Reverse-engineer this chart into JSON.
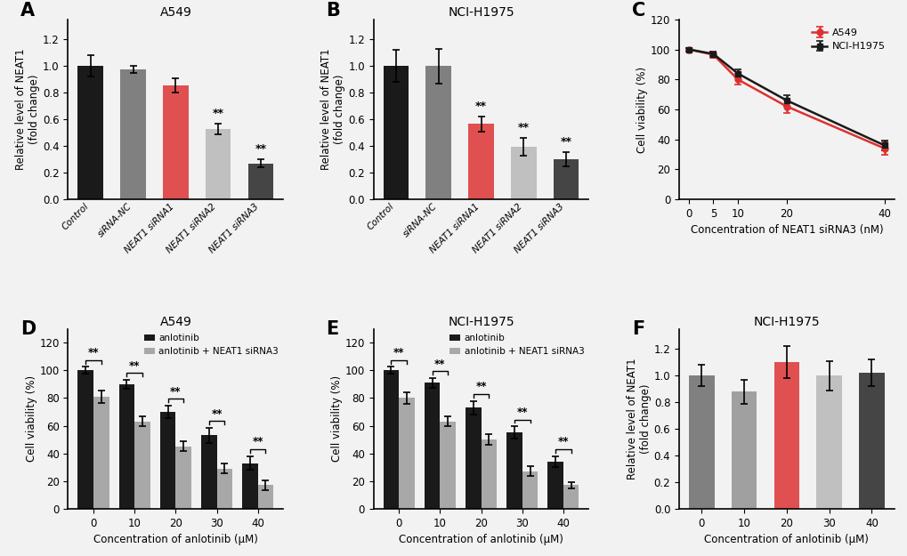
{
  "panel_A": {
    "title": "A549",
    "categories": [
      "Control",
      "siRNA-NC",
      "NEAT1 siRNA1",
      "NEAT1 siRNA2",
      "NEAT1 siRNA3"
    ],
    "values": [
      1.0,
      0.975,
      0.855,
      0.525,
      0.27
    ],
    "errors": [
      0.08,
      0.025,
      0.055,
      0.04,
      0.03
    ],
    "colors": [
      "#1a1a1a",
      "#808080",
      "#e05050",
      "#c0c0c0",
      "#454545"
    ],
    "sig": [
      false,
      false,
      false,
      true,
      true
    ],
    "ylabel": "Relative level of NEAT1\n(fold change)",
    "ylim": [
      0.0,
      1.35
    ],
    "yticks": [
      0.0,
      0.2,
      0.4,
      0.6,
      0.8,
      1.0,
      1.2
    ]
  },
  "panel_B": {
    "title": "NCI-H1975",
    "categories": [
      "Control",
      "siRNA-NC",
      "NEAT1 siRNA1",
      "NEAT1 siRNA2",
      "NEAT1 siRNA3"
    ],
    "values": [
      1.0,
      1.0,
      0.565,
      0.395,
      0.3
    ],
    "errors": [
      0.12,
      0.13,
      0.055,
      0.065,
      0.055
    ],
    "colors": [
      "#1a1a1a",
      "#808080",
      "#e05050",
      "#c0c0c0",
      "#454545"
    ],
    "sig": [
      false,
      false,
      true,
      true,
      true
    ],
    "ylabel": "Relative level of NEAT1\n(fold change)",
    "ylim": [
      0.0,
      1.35
    ],
    "yticks": [
      0.0,
      0.2,
      0.4,
      0.6,
      0.8,
      1.0,
      1.2
    ]
  },
  "panel_C": {
    "x": [
      0,
      5,
      10,
      20,
      40
    ],
    "A549_y": [
      100,
      96.5,
      80,
      62,
      34
    ],
    "A549_err": [
      1.2,
      1.8,
      3.5,
      4.5,
      4.5
    ],
    "NCI_y": [
      100,
      97,
      84,
      66,
      36
    ],
    "NCI_err": [
      1.0,
      1.5,
      2.5,
      3.5,
      3.5
    ],
    "xlabel": "Concentration of NEAT1 siRNA3 (nM)",
    "ylabel": "Cell viability (%)",
    "ylim": [
      0,
      120
    ],
    "yticks": [
      0,
      20,
      40,
      60,
      80,
      100,
      120
    ]
  },
  "panel_D": {
    "title": "A549",
    "x": [
      0,
      10,
      20,
      30,
      40
    ],
    "black_y": [
      100,
      90,
      70,
      53,
      33
    ],
    "black_err": [
      2.5,
      3.0,
      4.5,
      5.5,
      5.0
    ],
    "gray_y": [
      81,
      63,
      45,
      29,
      17
    ],
    "gray_err": [
      4.5,
      3.5,
      3.5,
      3.5,
      3.5
    ],
    "xlabel": "Concentration of anlotinib (μM)",
    "ylabel": "Cell viability (%)",
    "ylim": [
      0,
      130
    ],
    "yticks": [
      0,
      20,
      40,
      60,
      80,
      100,
      120
    ]
  },
  "panel_E": {
    "title": "NCI-H1975",
    "x": [
      0,
      10,
      20,
      30,
      40
    ],
    "black_y": [
      100,
      91,
      73,
      55,
      34
    ],
    "black_err": [
      2.5,
      3.5,
      5.0,
      4.5,
      4.0
    ],
    "gray_y": [
      80,
      63,
      50,
      27,
      17
    ],
    "gray_err": [
      4.0,
      3.5,
      4.0,
      3.5,
      2.5
    ],
    "xlabel": "Concentration of anlotinib (μM)",
    "ylabel": "Cell viability (%)",
    "ylim": [
      0,
      130
    ],
    "yticks": [
      0,
      20,
      40,
      60,
      80,
      100,
      120
    ]
  },
  "panel_F": {
    "title": "NCI-H1975",
    "categories": [
      "0",
      "10",
      "20",
      "30",
      "40"
    ],
    "values": [
      1.0,
      0.88,
      1.1,
      1.0,
      1.02
    ],
    "errors": [
      0.08,
      0.09,
      0.12,
      0.11,
      0.1
    ],
    "colors": [
      "#808080",
      "#a0a0a0",
      "#e05050",
      "#c0c0c0",
      "#454545"
    ],
    "ylabel": "Relative level of NEAT1\n(fold change)",
    "xlabel": "Concentration of anlotinib (μM)",
    "ylim": [
      0.0,
      1.35
    ],
    "yticks": [
      0.0,
      0.2,
      0.4,
      0.6,
      0.8,
      1.0,
      1.2
    ]
  },
  "bg_color": "#f2f2f2",
  "panel_bg": "#f2f2f2"
}
